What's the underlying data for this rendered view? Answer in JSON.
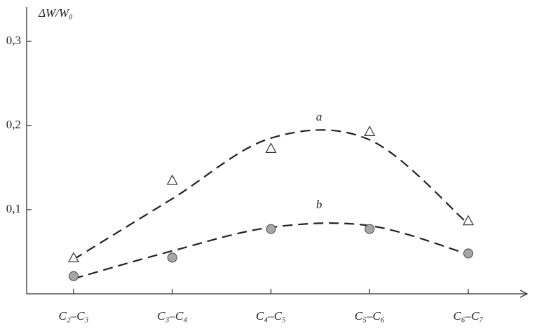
{
  "chart_data": {
    "type": "scatter",
    "y_label": "ΔW/W₀",
    "categories": [
      "C₂–C₃",
      "C₃–C₄",
      "C₄–C₅",
      "C₅–C₆",
      "C₆–C₇"
    ],
    "series": [
      {
        "name": "a",
        "marker": "triangle",
        "color": "#ffffff",
        "values": [
          0.043,
          0.135,
          0.173,
          0.193,
          0.087
        ],
        "fit": [
          0.041,
          0.113,
          0.185,
          0.183,
          0.083
        ]
      },
      {
        "name": "b",
        "marker": "circle",
        "color": "#a6a6a6",
        "values": [
          0.021,
          0.043,
          0.077,
          0.077,
          0.048
        ],
        "fit": [
          0.018,
          0.051,
          0.079,
          0.081,
          0.047
        ]
      }
    ],
    "ylim": [
      0,
      0.34
    ],
    "yticks": [
      {
        "value": 0.1,
        "label": "0,1"
      },
      {
        "value": 0.2,
        "label": "0,2"
      },
      {
        "value": 0.3,
        "label": "0,3"
      }
    ]
  }
}
